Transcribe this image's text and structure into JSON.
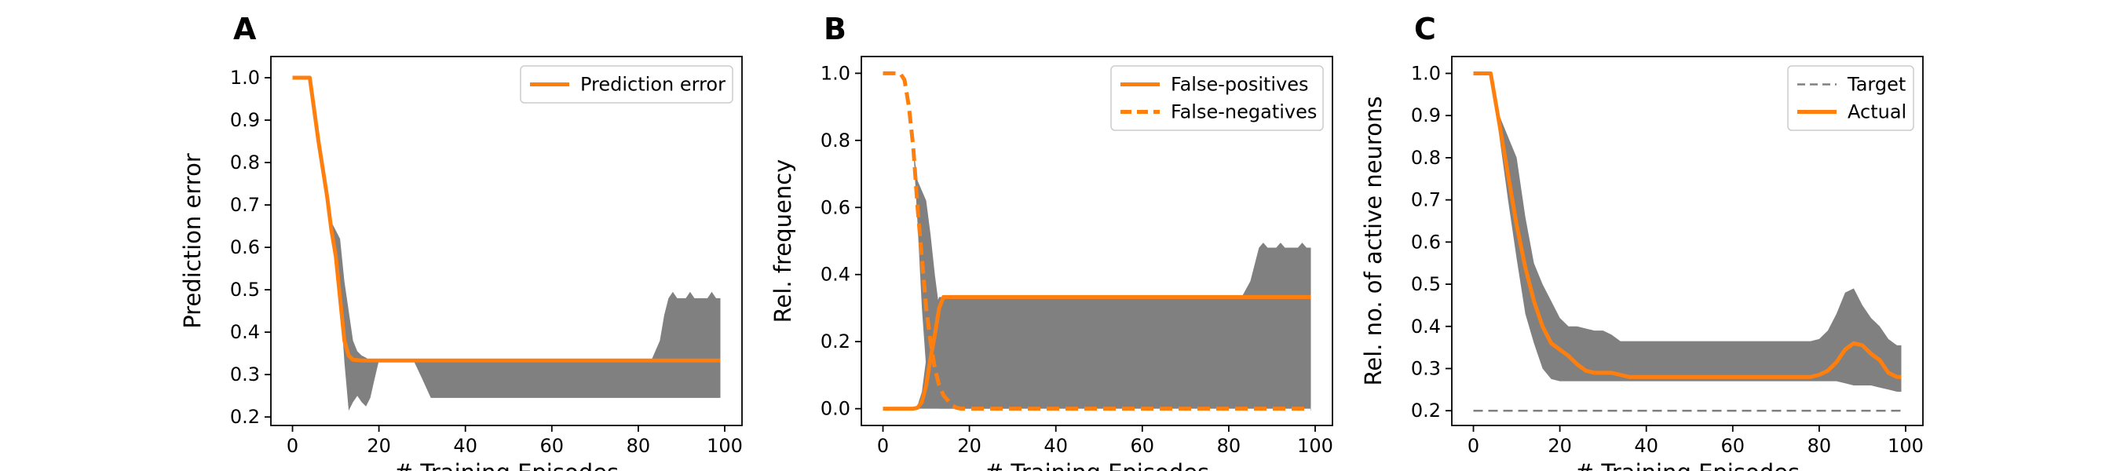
{
  "chart_data": [
    {
      "type": "line",
      "panel_letter": "A",
      "xlabel": "# Training Episodes",
      "ylabel": "Prediction error",
      "xlim": [
        -5,
        104
      ],
      "ylim": [
        0.18,
        1.05
      ],
      "xticks": [
        0,
        20,
        40,
        60,
        80,
        100
      ],
      "yticks": [
        0.2,
        0.3,
        0.4,
        0.5,
        0.6,
        0.7,
        0.8,
        0.9,
        1.0
      ],
      "ytick_labels": [
        "0.2",
        "0.3",
        "0.4",
        "0.5",
        "0.6",
        "0.7",
        "0.8",
        "0.9",
        "1.0"
      ],
      "grid": false,
      "legend_position": "top-right",
      "series": [
        {
          "name": "Prediction error",
          "color": "#ff7f0e",
          "dash": "solid",
          "x": [
            0,
            4,
            6,
            8,
            9,
            10,
            11,
            12,
            13,
            14,
            16,
            20,
            40,
            60,
            80,
            99
          ],
          "y": [
            1.0,
            1.0,
            0.85,
            0.72,
            0.64,
            0.58,
            0.48,
            0.38,
            0.345,
            0.335,
            0.333,
            0.333,
            0.333,
            0.333,
            0.333,
            0.333
          ]
        }
      ],
      "bands": [
        {
          "color": "#808080",
          "x": [
            0,
            4,
            6,
            8,
            9,
            10,
            11,
            12,
            13,
            14,
            15,
            16,
            17,
            18,
            19,
            20,
            24,
            28,
            30,
            32,
            80,
            83,
            85,
            86,
            87,
            88,
            89,
            90,
            91,
            92,
            93,
            94,
            95,
            96,
            97,
            98,
            99
          ],
          "upper": [
            1.0,
            1.0,
            0.85,
            0.72,
            0.66,
            0.64,
            0.62,
            0.52,
            0.45,
            0.38,
            0.355,
            0.345,
            0.34,
            0.333,
            0.333,
            0.333,
            0.333,
            0.333,
            0.333,
            0.333,
            0.333,
            0.333,
            0.38,
            0.44,
            0.48,
            0.495,
            0.48,
            0.48,
            0.48,
            0.495,
            0.48,
            0.48,
            0.48,
            0.48,
            0.495,
            0.48,
            0.48
          ],
          "lower": [
            1.0,
            1.0,
            0.85,
            0.72,
            0.64,
            0.58,
            0.48,
            0.33,
            0.215,
            0.235,
            0.25,
            0.235,
            0.225,
            0.245,
            0.29,
            0.333,
            0.333,
            0.333,
            0.29,
            0.245,
            0.245,
            0.245,
            0.245,
            0.245,
            0.245,
            0.245,
            0.245,
            0.245,
            0.245,
            0.245,
            0.245,
            0.245,
            0.245,
            0.245,
            0.245,
            0.245,
            0.245
          ]
        }
      ],
      "reference_lines": []
    },
    {
      "type": "line",
      "panel_letter": "B",
      "xlabel": "# Training Episodes",
      "ylabel": "Rel. frequency",
      "xlim": [
        -5,
        104
      ],
      "ylim": [
        -0.05,
        1.05
      ],
      "xticks": [
        0,
        20,
        40,
        60,
        80,
        100
      ],
      "yticks": [
        0.0,
        0.2,
        0.4,
        0.6,
        0.8,
        1.0
      ],
      "ytick_labels": [
        "0.0",
        "0.2",
        "0.4",
        "0.6",
        "0.8",
        "1.0"
      ],
      "grid": false,
      "legend_position": "top-right",
      "series": [
        {
          "name": "False-positives",
          "color": "#ff7f0e",
          "dash": "solid",
          "x": [
            0,
            7,
            8,
            9,
            10,
            11,
            12,
            13,
            14,
            15,
            20,
            40,
            60,
            80,
            99
          ],
          "y": [
            0.0,
            0.0,
            0.003,
            0.02,
            0.07,
            0.15,
            0.22,
            0.3,
            0.333,
            0.333,
            0.333,
            0.333,
            0.333,
            0.333,
            0.333
          ]
        },
        {
          "name": "False-negatives",
          "color": "#ff7f0e",
          "dash": "dashed",
          "x": [
            0,
            4,
            5,
            6,
            7,
            8,
            9,
            10,
            11,
            12,
            13,
            14,
            15,
            16,
            17,
            18,
            20,
            40,
            60,
            80,
            99
          ],
          "y": [
            1.0,
            1.0,
            0.98,
            0.9,
            0.78,
            0.6,
            0.45,
            0.3,
            0.2,
            0.12,
            0.07,
            0.04,
            0.025,
            0.01,
            0.003,
            0.0,
            0.0,
            0.0,
            0.0,
            0.0,
            0.0
          ]
        }
      ],
      "bands": [
        {
          "color": "#808080",
          "x": [
            0,
            7,
            8,
            9,
            10,
            11,
            12,
            13,
            14,
            15,
            20,
            40,
            60,
            80,
            83,
            85,
            86,
            87,
            88,
            89,
            90,
            91,
            92,
            93,
            94,
            95,
            96,
            97,
            98,
            99
          ],
          "upper": [
            0.0,
            0.0,
            0.01,
            0.05,
            0.15,
            0.25,
            0.3,
            0.333,
            0.333,
            0.333,
            0.333,
            0.333,
            0.333,
            0.333,
            0.333,
            0.38,
            0.43,
            0.48,
            0.495,
            0.48,
            0.48,
            0.48,
            0.495,
            0.48,
            0.48,
            0.48,
            0.48,
            0.495,
            0.48,
            0.48
          ],
          "lower": [
            0.0,
            0.0,
            0.0,
            0.0,
            0.0,
            0.0,
            0.0,
            0.0,
            0.0,
            0.0,
            0.0,
            0.0,
            0.0,
            0.0,
            0.0,
            0.0,
            0.0,
            0.0,
            0.0,
            0.0,
            0.0,
            0.0,
            0.0,
            0.0,
            0.0,
            0.0,
            0.0,
            0.0,
            0.0,
            0.0
          ]
        },
        {
          "color": "#808080",
          "x": [
            14,
            15,
            16,
            17,
            18,
            20,
            22,
            24,
            26,
            40,
            60,
            80,
            99
          ],
          "upper": [
            0.333,
            0.333,
            0.333,
            0.333,
            0.32,
            0.3,
            0.28,
            0.26,
            0.245,
            0.245,
            0.245,
            0.245,
            0.245
          ],
          "lower": [
            0.1,
            0.14,
            0.18,
            0.215,
            0.245,
            0.245,
            0.245,
            0.245,
            0.245,
            0.245,
            0.245,
            0.245,
            0.245
          ]
        },
        {
          "color": "#808080",
          "x": [
            0,
            4,
            5,
            6,
            7,
            8,
            9,
            10,
            11,
            12,
            13,
            14,
            15,
            16,
            17,
            18,
            20,
            21,
            24,
            28,
            29,
            31,
            32
          ],
          "upper": [
            1.0,
            1.0,
            0.98,
            0.9,
            0.78,
            0.68,
            0.65,
            0.62,
            0.52,
            0.4,
            0.3,
            0.23,
            0.18,
            0.14,
            0.12,
            0.1,
            0.095,
            0.095,
            0.095,
            0.095,
            0.06,
            0.01,
            0.0
          ],
          "lower": [
            1.0,
            1.0,
            0.98,
            0.9,
            0.78,
            0.55,
            0.3,
            0.12,
            0.04,
            0.01,
            0.0,
            0.0,
            0.0,
            0.0,
            0.0,
            0.0,
            0.0,
            0.0,
            0.0,
            0.0,
            0.0,
            0.0,
            0.0
          ]
        }
      ],
      "reference_lines": []
    },
    {
      "type": "line",
      "panel_letter": "C",
      "xlabel": "# Training Episodes",
      "ylabel": "Rel. no. of active neurons",
      "xlim": [
        -5,
        104
      ],
      "ylim": [
        0.165,
        1.04
      ],
      "xticks": [
        0,
        20,
        40,
        60,
        80,
        100
      ],
      "yticks": [
        0.2,
        0.3,
        0.4,
        0.5,
        0.6,
        0.7,
        0.8,
        0.9,
        1.0
      ],
      "ytick_labels": [
        "0.2",
        "0.3",
        "0.4",
        "0.5",
        "0.6",
        "0.7",
        "0.8",
        "0.9",
        "1.0"
      ],
      "grid": false,
      "legend_position": "top-right",
      "series": [
        {
          "name": "Actual",
          "color": "#ff7f0e",
          "dash": "solid",
          "x": [
            0,
            4,
            6,
            8,
            10,
            12,
            14,
            16,
            18,
            20,
            22,
            24,
            26,
            28,
            30,
            32,
            34,
            36,
            40,
            50,
            60,
            70,
            78,
            80,
            82,
            84,
            86,
            88,
            90,
            92,
            94,
            96,
            98,
            99
          ],
          "y": [
            1.0,
            1.0,
            0.88,
            0.76,
            0.64,
            0.54,
            0.46,
            0.4,
            0.36,
            0.345,
            0.33,
            0.31,
            0.295,
            0.29,
            0.29,
            0.29,
            0.285,
            0.28,
            0.28,
            0.28,
            0.28,
            0.28,
            0.28,
            0.285,
            0.295,
            0.315,
            0.345,
            0.36,
            0.355,
            0.335,
            0.32,
            0.29,
            0.28,
            0.28
          ]
        },
        {
          "name": "Target",
          "color": "#808080",
          "dash": "dashed",
          "x": [
            0,
            99
          ],
          "y": [
            0.2,
            0.2
          ]
        }
      ],
      "bands": [
        {
          "color": "#808080",
          "x": [
            0,
            4,
            6,
            8,
            10,
            12,
            14,
            16,
            18,
            20,
            22,
            24,
            26,
            28,
            30,
            32,
            34,
            36,
            40,
            50,
            60,
            70,
            78,
            80,
            82,
            84,
            86,
            88,
            90,
            92,
            94,
            96,
            98,
            99
          ],
          "upper": [
            1.0,
            1.0,
            0.9,
            0.85,
            0.8,
            0.66,
            0.55,
            0.5,
            0.46,
            0.42,
            0.4,
            0.4,
            0.395,
            0.39,
            0.39,
            0.38,
            0.365,
            0.365,
            0.365,
            0.365,
            0.365,
            0.365,
            0.365,
            0.37,
            0.39,
            0.43,
            0.48,
            0.49,
            0.45,
            0.42,
            0.4,
            0.37,
            0.355,
            0.355
          ],
          "lower": [
            1.0,
            1.0,
            0.85,
            0.7,
            0.56,
            0.43,
            0.36,
            0.3,
            0.275,
            0.27,
            0.27,
            0.27,
            0.27,
            0.27,
            0.27,
            0.27,
            0.27,
            0.27,
            0.27,
            0.27,
            0.27,
            0.27,
            0.27,
            0.27,
            0.27,
            0.27,
            0.265,
            0.26,
            0.26,
            0.26,
            0.255,
            0.25,
            0.245,
            0.245
          ]
        }
      ],
      "reference_lines": []
    }
  ]
}
